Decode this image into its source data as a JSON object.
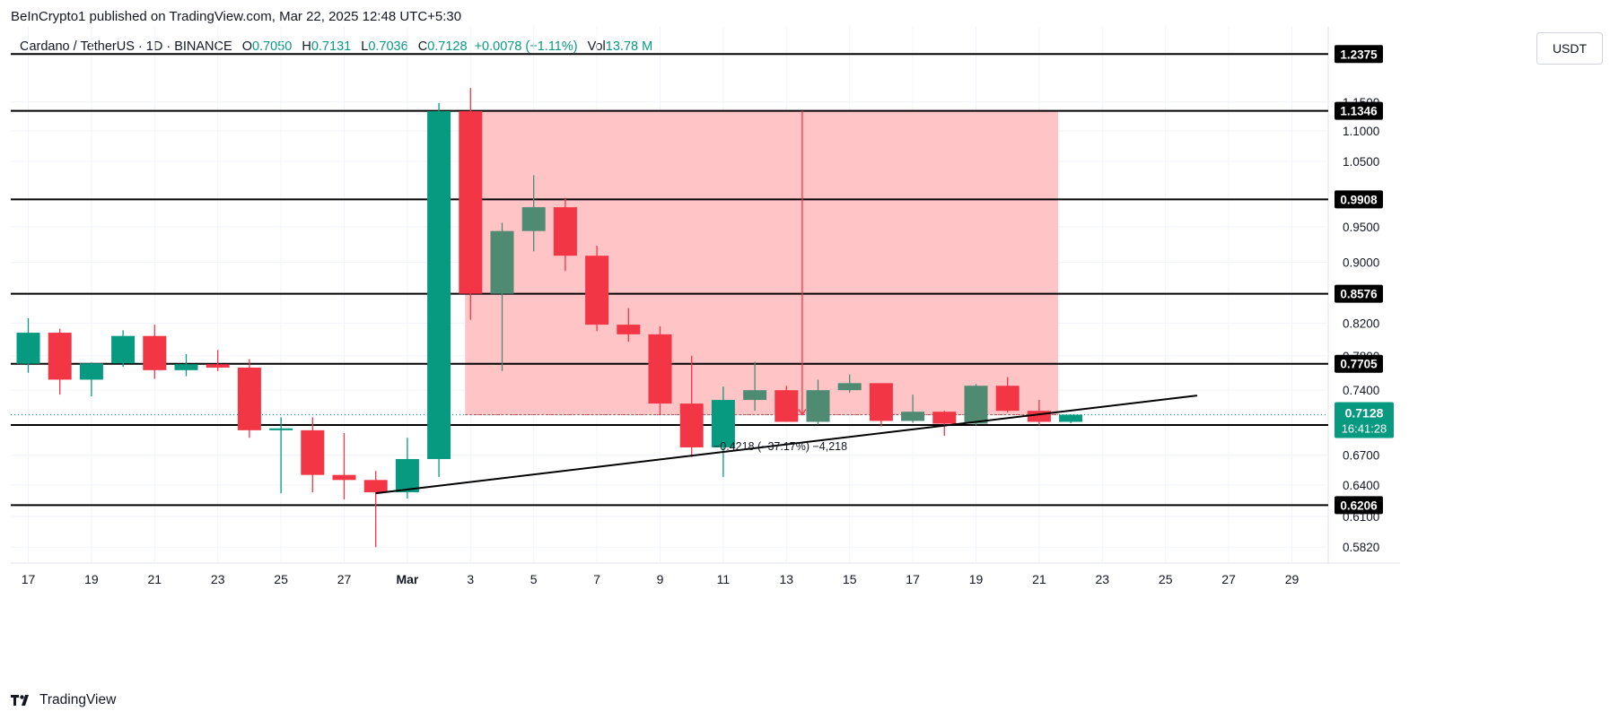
{
  "header": {
    "published": "BeInCrypto1 published on TradingView.com, Mar 22, 2025 12:48 UTC+5:30",
    "symbol": "Cardano / TetherUS · 1D · BINANCE",
    "o_label": "O",
    "o_value": "0.7050",
    "h_label": "H",
    "h_value": "0.7131",
    "l_label": "L",
    "l_value": "0.7036",
    "c_label": "C",
    "c_value": "0.7128",
    "change": "+0.0078 (+1.11%)",
    "vol_label": "Vol",
    "vol_value": "13.78 M"
  },
  "currency_button": "USDT",
  "footer": {
    "brand": "TradingView"
  },
  "colors": {
    "up": "#089981",
    "up_dim": "#4f8a73",
    "down": "#f23645",
    "zone": "#ffc1c3",
    "current": "#089981",
    "level_label_bg": "#000000"
  },
  "chart_data": {
    "type": "candlestick",
    "scale": "log",
    "ylim": [
      0.568,
      1.29
    ],
    "y_ticks": [
      "1.1500",
      "1.1000",
      "1.0500",
      "0.9500",
      "0.9000",
      "0.8200",
      "0.7800",
      "0.7400",
      "0.6700",
      "0.6400",
      "0.6100",
      "0.5820"
    ],
    "x_ticks": [
      {
        "day": 17,
        "label": "17"
      },
      {
        "day": 19,
        "label": "19"
      },
      {
        "day": 21,
        "label": "21"
      },
      {
        "day": 23,
        "label": "23"
      },
      {
        "day": 25,
        "label": "25"
      },
      {
        "day": 27,
        "label": "27"
      },
      {
        "day": 29,
        "label": "Mar"
      },
      {
        "day": 31,
        "label": "3"
      },
      {
        "day": 33,
        "label": "5"
      },
      {
        "day": 35,
        "label": "7"
      },
      {
        "day": 37,
        "label": "9"
      },
      {
        "day": 39,
        "label": "11"
      },
      {
        "day": 41,
        "label": "13"
      },
      {
        "day": 43,
        "label": "15"
      },
      {
        "day": 45,
        "label": "17"
      },
      {
        "day": 47,
        "label": "19"
      },
      {
        "day": 49,
        "label": "21"
      },
      {
        "day": 51,
        "label": "23"
      },
      {
        "day": 53,
        "label": "25"
      },
      {
        "day": 55,
        "label": "27"
      },
      {
        "day": 57,
        "label": "29"
      }
    ],
    "candles": [
      {
        "day": 17,
        "o": 0.7705,
        "h": 0.826,
        "l": 0.76,
        "c": 0.808
      },
      {
        "day": 18,
        "o": 0.808,
        "h": 0.813,
        "l": 0.735,
        "c": 0.752
      },
      {
        "day": 19,
        "o": 0.752,
        "h": 0.772,
        "l": 0.733,
        "c": 0.771
      },
      {
        "day": 20,
        "o": 0.771,
        "h": 0.811,
        "l": 0.767,
        "c": 0.804
      },
      {
        "day": 21,
        "o": 0.804,
        "h": 0.818,
        "l": 0.753,
        "c": 0.763
      },
      {
        "day": 22,
        "o": 0.763,
        "h": 0.782,
        "l": 0.756,
        "c": 0.77
      },
      {
        "day": 23,
        "o": 0.77,
        "h": 0.787,
        "l": 0.762,
        "c": 0.766
      },
      {
        "day": 24,
        "o": 0.766,
        "h": 0.776,
        "l": 0.688,
        "c": 0.696
      },
      {
        "day": 25,
        "o": 0.696,
        "h": 0.71,
        "l": 0.632,
        "c": 0.698
      },
      {
        "day": 26,
        "o": 0.696,
        "h": 0.71,
        "l": 0.633,
        "c": 0.65
      },
      {
        "day": 27,
        "o": 0.65,
        "h": 0.693,
        "l": 0.626,
        "c": 0.645
      },
      {
        "day": 28,
        "o": 0.645,
        "h": 0.654,
        "l": 0.582,
        "c": 0.633
      },
      {
        "day": 29,
        "o": 0.633,
        "h": 0.688,
        "l": 0.627,
        "c": 0.666
      },
      {
        "day": 30,
        "o": 0.666,
        "h": 1.148,
        "l": 0.648,
        "c": 1.134
      },
      {
        "day": 31,
        "o": 1.134,
        "h": 1.175,
        "l": 0.824,
        "c": 0.8576
      },
      {
        "day": 32,
        "o": 0.8576,
        "h": 0.956,
        "l": 0.762,
        "c": 0.944
      },
      {
        "day": 33,
        "o": 0.944,
        "h": 1.028,
        "l": 0.915,
        "c": 0.979
      },
      {
        "day": 34,
        "o": 0.979,
        "h": 0.993,
        "l": 0.888,
        "c": 0.909
      },
      {
        "day": 35,
        "o": 0.909,
        "h": 0.923,
        "l": 0.81,
        "c": 0.818
      },
      {
        "day": 36,
        "o": 0.818,
        "h": 0.839,
        "l": 0.797,
        "c": 0.806
      },
      {
        "day": 37,
        "o": 0.806,
        "h": 0.816,
        "l": 0.713,
        "c": 0.725
      },
      {
        "day": 38,
        "o": 0.725,
        "h": 0.78,
        "l": 0.668,
        "c": 0.678
      },
      {
        "day": 39,
        "o": 0.678,
        "h": 0.744,
        "l": 0.648,
        "c": 0.729
      },
      {
        "day": 40,
        "o": 0.729,
        "h": 0.773,
        "l": 0.717,
        "c": 0.74
      },
      {
        "day": 41,
        "o": 0.74,
        "h": 0.745,
        "l": 0.705,
        "c": 0.705
      },
      {
        "day": 42,
        "o": 0.705,
        "h": 0.752,
        "l": 0.702,
        "c": 0.74
      },
      {
        "day": 43,
        "o": 0.74,
        "h": 0.758,
        "l": 0.737,
        "c": 0.748
      },
      {
        "day": 44,
        "o": 0.748,
        "h": 0.747,
        "l": 0.7,
        "c": 0.706
      },
      {
        "day": 45,
        "o": 0.706,
        "h": 0.735,
        "l": 0.704,
        "c": 0.716
      },
      {
        "day": 46,
        "o": 0.716,
        "h": 0.717,
        "l": 0.69,
        "c": 0.703
      },
      {
        "day": 47,
        "o": 0.703,
        "h": 0.747,
        "l": 0.701,
        "c": 0.745
      },
      {
        "day": 48,
        "o": 0.745,
        "h": 0.755,
        "l": 0.715,
        "c": 0.717
      },
      {
        "day": 49,
        "o": 0.717,
        "h": 0.729,
        "l": 0.701,
        "c": 0.705
      },
      {
        "day": 50,
        "o": 0.705,
        "h": 0.7131,
        "l": 0.7036,
        "c": 0.7128
      }
    ],
    "levels": [
      {
        "value": 1.2375,
        "label": "1.2375"
      },
      {
        "value": 1.1346,
        "label": "1.1346"
      },
      {
        "value": 0.9908,
        "label": "0.9908"
      },
      {
        "value": 0.8576,
        "label": "0.8576"
      },
      {
        "value": 0.7705,
        "label": "0.7705"
      },
      {
        "value": 0.7016,
        "label": "0.7016"
      },
      {
        "value": 0.6206,
        "label": "0.6206"
      }
    ],
    "zone": {
      "x0": 31,
      "x1": 50,
      "y_top": 1.1346,
      "y_bottom": 0.7128
    },
    "measure": {
      "day": 41.5,
      "from": 1.1346,
      "to": 0.7128,
      "label": "−0.4218 (−37.17%) −4,218"
    },
    "trendline": {
      "x0": 28,
      "y0": 0.632,
      "x1": 54,
      "y1": 0.734
    },
    "current": {
      "price": "0.7128",
      "countdown": "16:41:28",
      "value": 0.7128
    }
  }
}
